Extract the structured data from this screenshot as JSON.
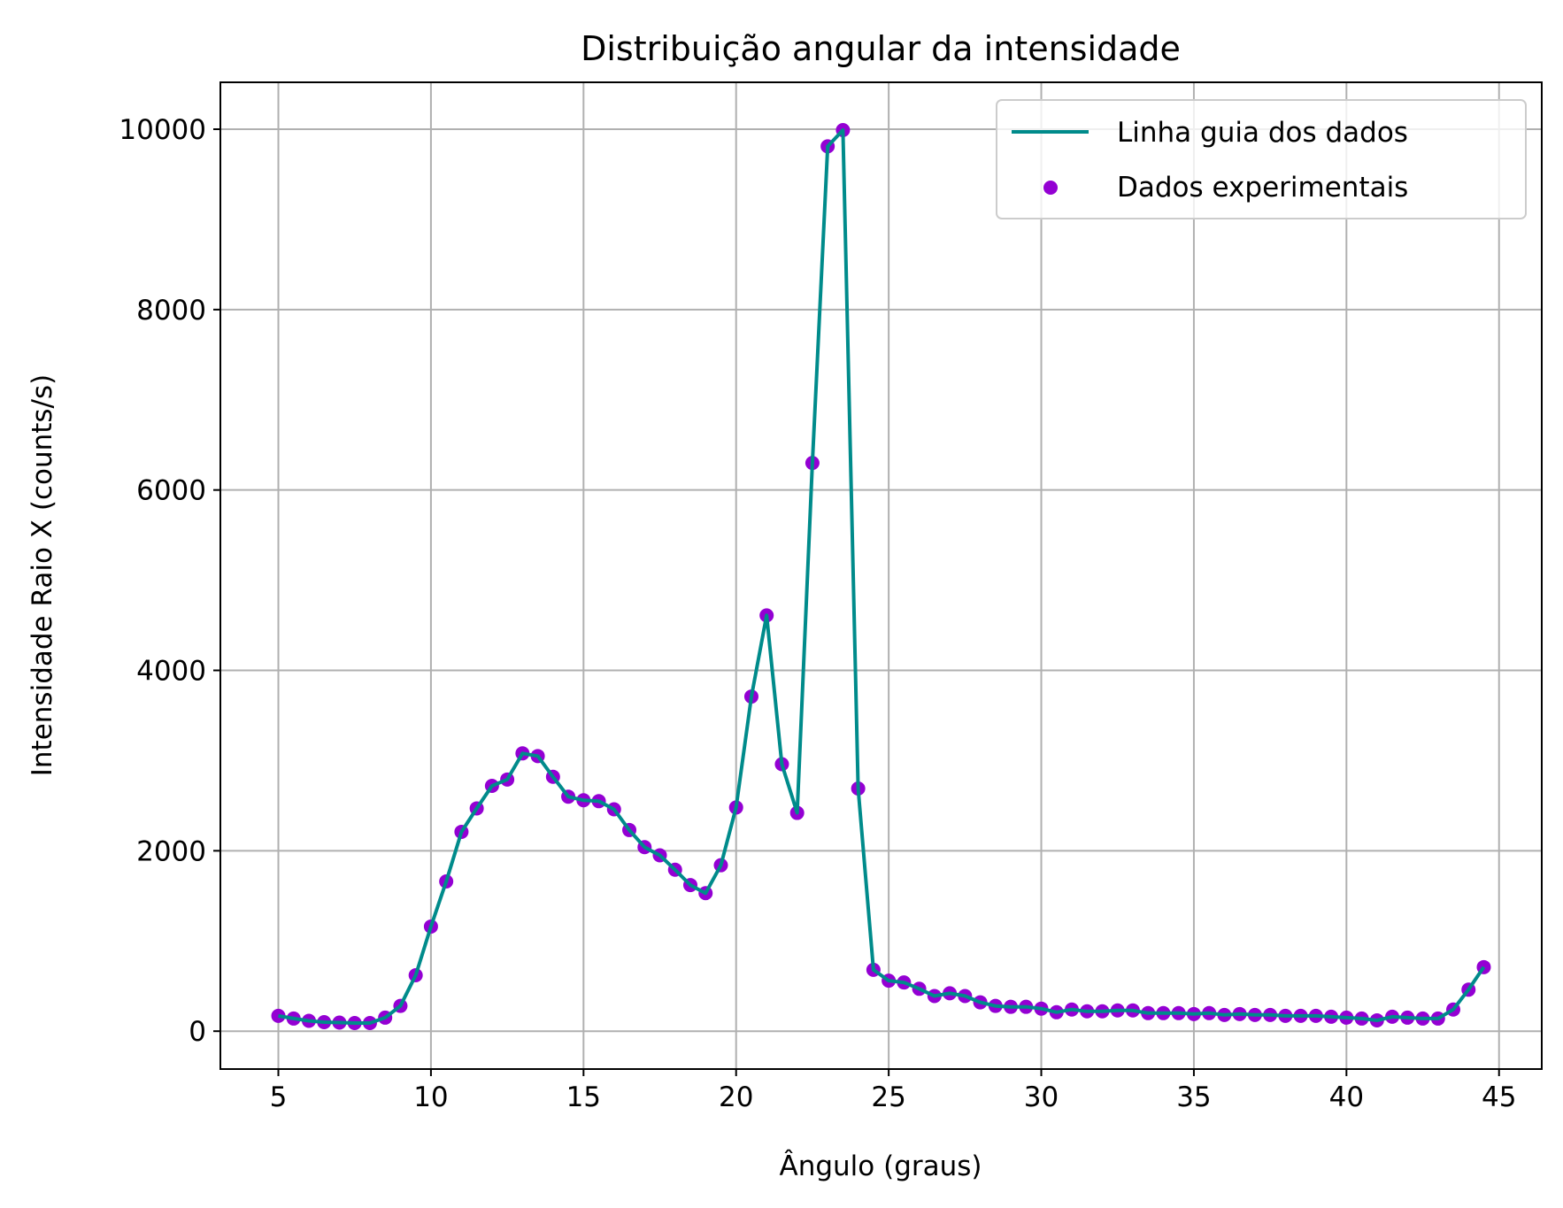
{
  "chart_data": {
    "type": "line+scatter",
    "title": "Distribuição angular da intensidade",
    "xlabel": "Ângulo (graus)",
    "ylabel": "Intensidade Raio X (counts/s)",
    "xlim": [
      3.1,
      46.4
    ],
    "ylim": [
      -420,
      10520
    ],
    "xticks": [
      5,
      10,
      15,
      20,
      25,
      30,
      35,
      40,
      45
    ],
    "yticks": [
      0,
      2000,
      4000,
      6000,
      8000,
      10000
    ],
    "xtick_labels": [
      "5",
      "10",
      "15",
      "20",
      "25",
      "30",
      "35",
      "40",
      "45"
    ],
    "ytick_labels": [
      "0",
      "2000",
      "4000",
      "6000",
      "8000",
      "10000"
    ],
    "grid": true,
    "legend_position": "top-right",
    "series": [
      {
        "name": "Linha guia dos dados",
        "kind": "line",
        "color": "#008b8b"
      },
      {
        "name": "Dados experimentais",
        "kind": "scatter",
        "color": "#9400d3"
      }
    ],
    "x": [
      5,
      5.5,
      6,
      6.5,
      7,
      7.5,
      8,
      8.5,
      9,
      9.5,
      10,
      10.5,
      11,
      11.5,
      12,
      12.5,
      13,
      13.5,
      14,
      14.5,
      15,
      15.5,
      16,
      16.5,
      17,
      17.5,
      18,
      18.5,
      19,
      19.5,
      20,
      20.5,
      21,
      21.5,
      22,
      22.5,
      23,
      23.5,
      24,
      24.5,
      25,
      25.5,
      26,
      26.5,
      27,
      27.5,
      28,
      28.5,
      29,
      29.5,
      30,
      30.5,
      31,
      31.5,
      32,
      32.5,
      33,
      33.5,
      34,
      34.5,
      35,
      35.5,
      36,
      36.5,
      37,
      37.5,
      38,
      38.5,
      39,
      39.5,
      40,
      40.5,
      41,
      41.5,
      42,
      42.5,
      43,
      43.5,
      44,
      44.5
    ],
    "y": [
      170,
      140,
      115,
      100,
      95,
      90,
      90,
      150,
      280,
      620,
      1160,
      1660,
      2210,
      2470,
      2720,
      2790,
      3080,
      3050,
      2820,
      2600,
      2560,
      2550,
      2460,
      2230,
      2040,
      1950,
      1790,
      1620,
      1530,
      1840,
      2480,
      3710,
      4610,
      2960,
      2420,
      6300,
      9810,
      9990,
      2690,
      680,
      560,
      540,
      470,
      390,
      420,
      390,
      320,
      280,
      270,
      270,
      250,
      210,
      240,
      220,
      220,
      230,
      230,
      200,
      200,
      200,
      190,
      200,
      180,
      190,
      180,
      180,
      170,
      170,
      170,
      160,
      150,
      140,
      120,
      160,
      150,
      140,
      140,
      240,
      460,
      710
    ]
  }
}
